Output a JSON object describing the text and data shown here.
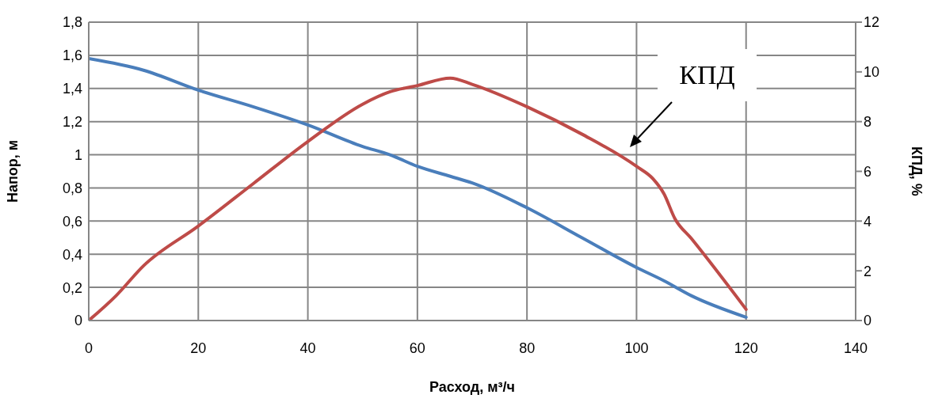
{
  "chart_data": {
    "type": "line",
    "xlabel": "Расход, м³/ч",
    "ylabel": "Напор, м",
    "y2label": "КПД, %",
    "xlim": [
      0,
      140
    ],
    "xticks": [
      0,
      20,
      40,
      60,
      80,
      100,
      120,
      140
    ],
    "ylim": [
      0,
      1.8
    ],
    "yticks": [
      0,
      {
        "value": 0.2,
        "label": "0,2"
      },
      {
        "value": 0.4,
        "label": "0,4"
      },
      {
        "value": 0.6,
        "label": "0,6"
      },
      {
        "value": 0.8,
        "label": "0,8"
      },
      1,
      {
        "value": 1.2,
        "label": "1,2"
      },
      {
        "value": 1.4,
        "label": "1,4"
      },
      {
        "value": 1.6,
        "label": "1,6"
      },
      {
        "value": 1.8,
        "label": "1,8"
      }
    ],
    "y2lim": [
      0,
      12
    ],
    "y2ticks": [
      0,
      2,
      4,
      6,
      8,
      10,
      12
    ],
    "grid": true,
    "legend": false,
    "marker": "none",
    "line_style": "solid",
    "series": [
      {
        "color": "#4a7ebb",
        "x": [
          0,
          10,
          20,
          30,
          40,
          50,
          55,
          60,
          66,
          70,
          80,
          90,
          100,
          105,
          110,
          120
        ],
        "values": [
          1.58,
          1.51,
          1.39,
          1.29,
          1.18,
          1.05,
          1.0,
          0.93,
          0.87,
          0.83,
          0.68,
          0.5,
          0.32,
          0.24,
          0.15,
          0.02
        ]
      },
      {
        "name": "КПД",
        "axis": "y2",
        "color": "#be4b48",
        "x": [
          0,
          5,
          10,
          20,
          30,
          40,
          50,
          55,
          60,
          66,
          70,
          80,
          90,
          100,
          103,
          105,
          107,
          110,
          120
        ],
        "values": [
          0,
          1.0,
          2.2,
          3.8,
          5.5,
          7.2,
          8.7,
          9.2,
          9.45,
          9.75,
          9.5,
          8.6,
          7.5,
          6.2,
          5.7,
          5.1,
          4.1,
          3.3,
          0.45
        ]
      }
    ]
  }
}
